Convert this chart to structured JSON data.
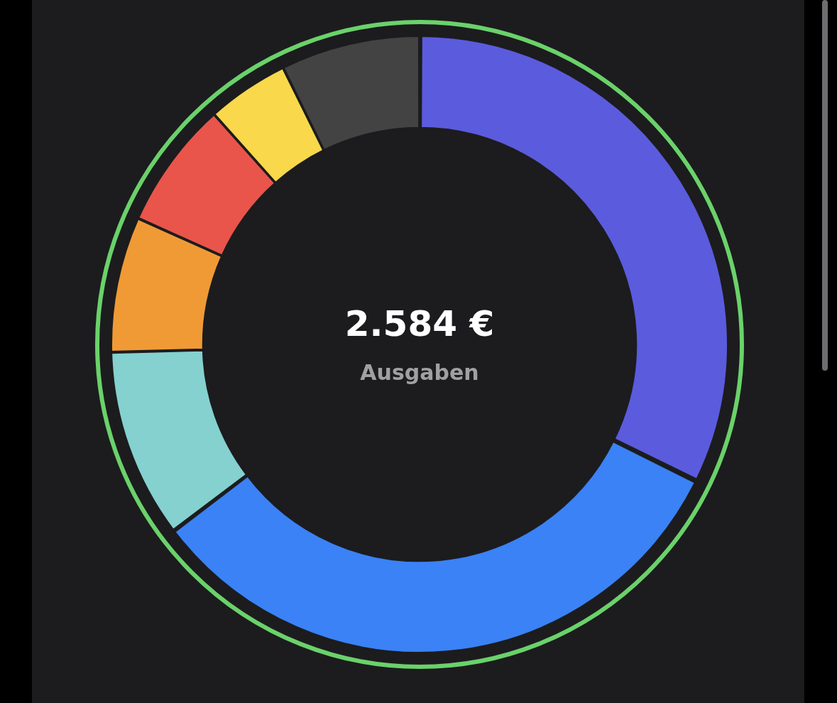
{
  "chart_data": {
    "type": "donut",
    "categories": [
      null,
      null,
      null,
      null,
      null,
      null,
      null
    ],
    "values": [
      32.3,
      32.4,
      9.9,
      7.1,
      6.7,
      4.3,
      7.3
    ],
    "colors": [
      "#5b5bde",
      "#3a82f6",
      "#84d1cf",
      "#f09a36",
      "#e9554a",
      "#f9d84b",
      "#434343"
    ],
    "annotations": [
      "2.584 €",
      "Ausgaben"
    ],
    "legend": false
  }
}
